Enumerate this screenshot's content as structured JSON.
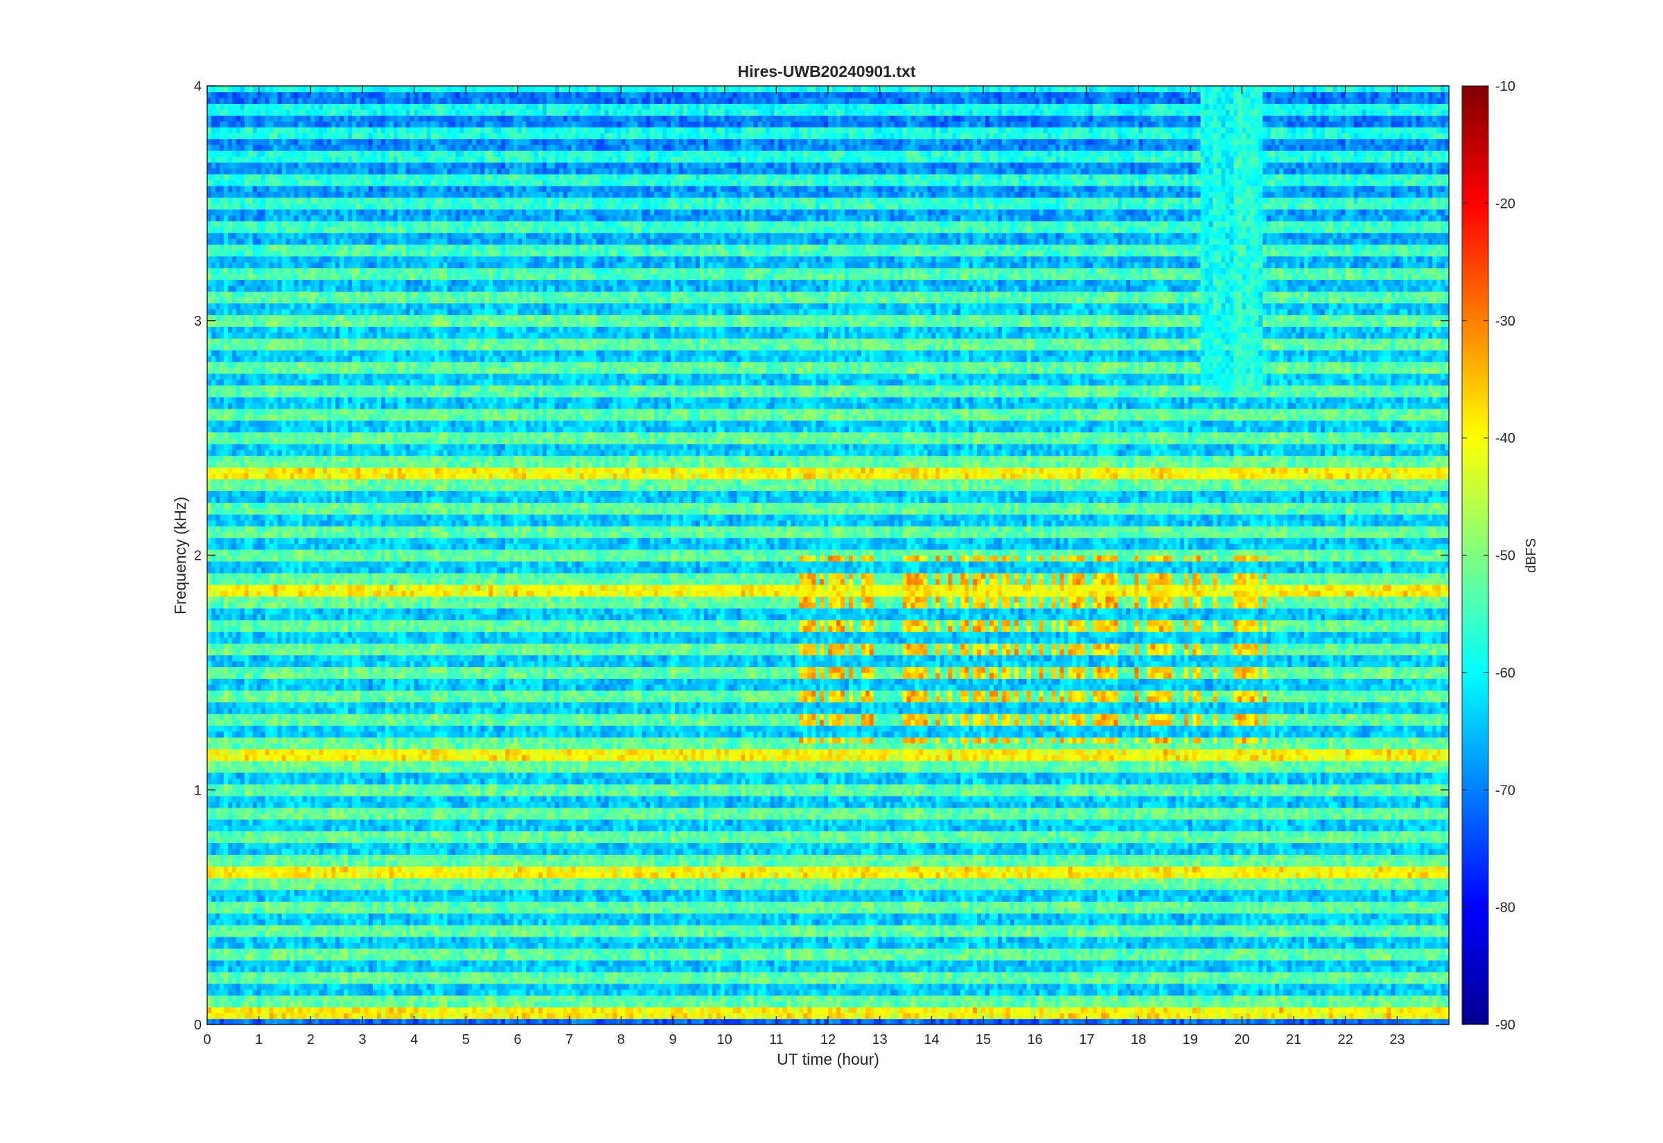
{
  "chart_data": {
    "type": "heatmap",
    "title": "Hires-UWB20240901.txt",
    "xlabel": "UT time (hour)",
    "ylabel": "Frequency (kHz)",
    "xlim": [
      0,
      24
    ],
    "ylim": [
      0,
      4
    ],
    "x_ticks": [
      "0",
      "1",
      "2",
      "3",
      "4",
      "5",
      "6",
      "7",
      "8",
      "9",
      "10",
      "11",
      "12",
      "13",
      "14",
      "15",
      "16",
      "17",
      "18",
      "19",
      "20",
      "21",
      "22",
      "23"
    ],
    "y_ticks": [
      "0",
      "1",
      "2",
      "3",
      "4"
    ],
    "colorbar": {
      "label": "dBFS",
      "range": [
        -90,
        -10
      ],
      "ticks": [
        "-10",
        "-20",
        "-30",
        "-40",
        "-50",
        "-60",
        "-70",
        "-80",
        "-90"
      ],
      "colormap": "jet"
    },
    "description_of_data": {
      "band_spacing_khz": 0.1,
      "typical_level_dbfs": [
        -65,
        -45
      ],
      "strong_lines_khz": [
        0.05,
        0.65,
        1.15,
        1.85,
        2.35
      ],
      "strong_line_level_dbfs": -38,
      "burst_activity_hours": [
        11.4,
        20.5
      ],
      "burst_activity_khz": [
        1.2,
        2.0
      ],
      "burst_peak_dbfs": -33,
      "high_band_khz": [
        3.0,
        4.0
      ],
      "high_band_level_dbfs": -68,
      "gap_hours": [
        19.2,
        20.4
      ]
    },
    "colors": {
      "axis": "#262626",
      "background": "#ffffff"
    }
  }
}
